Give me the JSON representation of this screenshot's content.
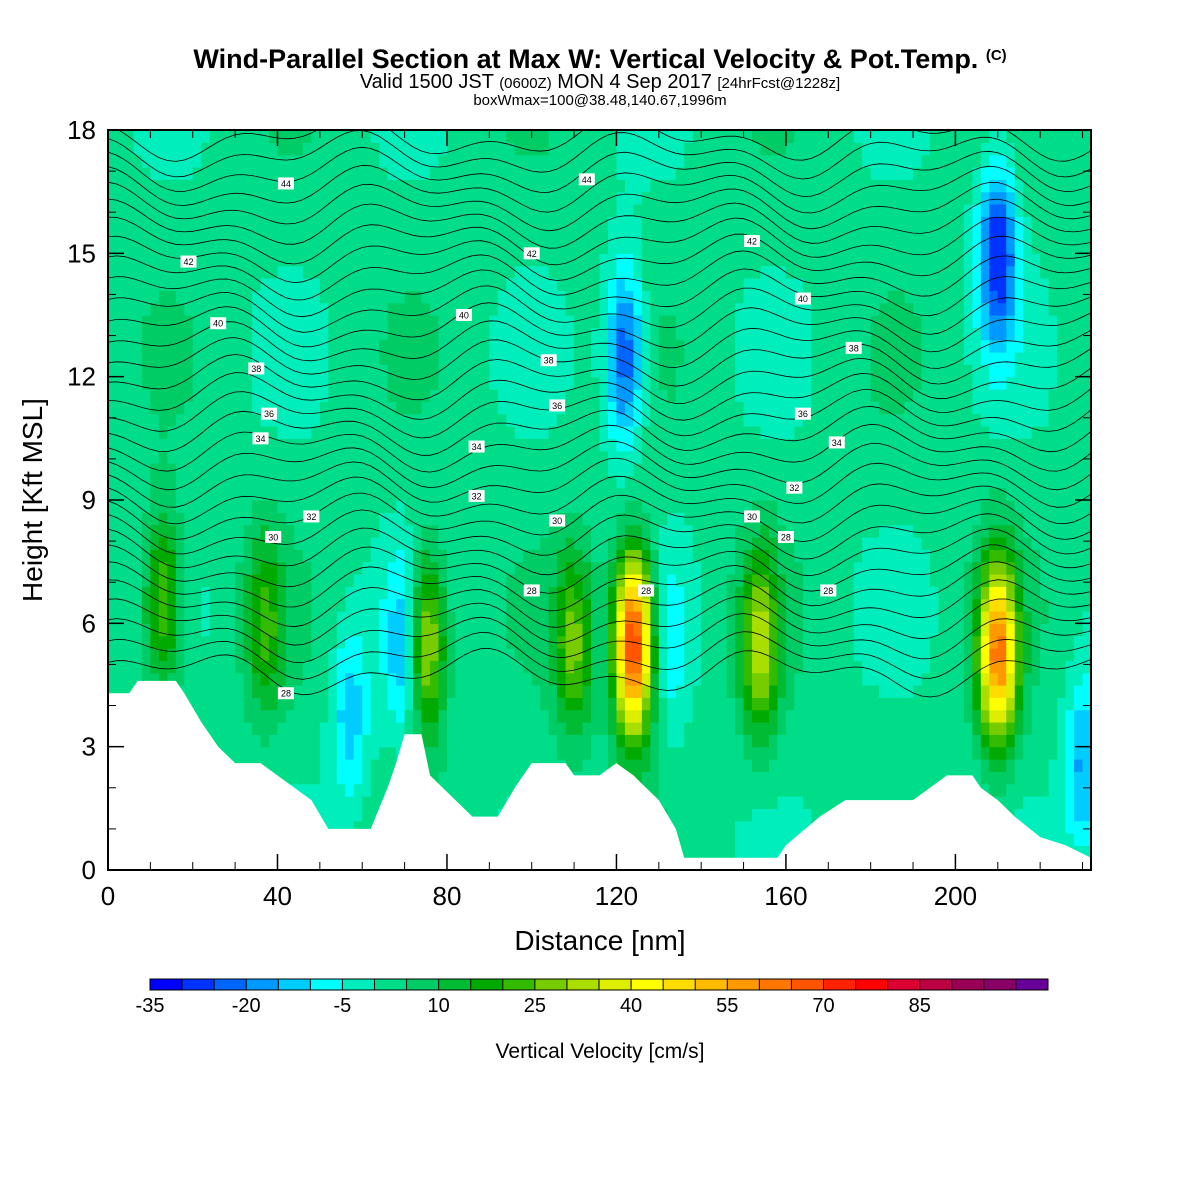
{
  "title": {
    "main": "Wind-Parallel Section at Max W: Vertical Velocity & Pot.Temp.",
    "copyright": "(C)",
    "valid_prefix": "Valid 1500 JST",
    "valid_utc": "(0600Z)",
    "valid_date": "MON 4 Sep 2017",
    "forecast": "[24hrFcst@1228z]",
    "box": "boxWmax=100@38.48,140.67,1996m"
  },
  "chart_data": {
    "type": "heatmap",
    "xlabel": "Distance [nm]",
    "ylabel": "Height [Kft MSL]",
    "xlim": [
      0,
      232
    ],
    "ylim": [
      0,
      18
    ],
    "xticks": [
      0,
      40,
      80,
      120,
      160,
      200
    ],
    "yticks": [
      0,
      3,
      6,
      9,
      12,
      15,
      18
    ],
    "colorbar": {
      "title": "Vertical Velocity [cm/s]",
      "labels": [
        "-35",
        "-20",
        "-5",
        "10",
        "25",
        "40",
        "55",
        "70",
        "85"
      ],
      "min": -35,
      "step": 5,
      "colors": [
        "#0000ff",
        "#0033ff",
        "#0066ff",
        "#0099ff",
        "#00ccff",
        "#00ffff",
        "#00eebb",
        "#00dd88",
        "#00cc66",
        "#00bb33",
        "#00aa00",
        "#33bb00",
        "#77cc00",
        "#aadd00",
        "#ddee00",
        "#ffff00",
        "#ffdd00",
        "#ffbb00",
        "#ff9900",
        "#ff7700",
        "#ff5500",
        "#ff2200",
        "#ff0000",
        "#dd0033",
        "#bb0044",
        "#990055",
        "#880066",
        "#660099"
      ]
    },
    "terrain": [
      [
        0,
        4.3
      ],
      [
        5,
        4.3
      ],
      [
        7,
        4.6
      ],
      [
        16,
        4.6
      ],
      [
        18,
        4.3
      ],
      [
        22,
        3.6
      ],
      [
        26,
        3.0
      ],
      [
        30,
        2.6
      ],
      [
        36,
        2.6
      ],
      [
        44,
        2.0
      ],
      [
        48,
        1.7
      ],
      [
        52,
        1.0
      ],
      [
        62,
        1.0
      ],
      [
        66,
        2.0
      ],
      [
        68,
        2.6
      ],
      [
        70,
        3.3
      ],
      [
        74,
        3.3
      ],
      [
        76,
        2.3
      ],
      [
        82,
        1.7
      ],
      [
        86,
        1.3
      ],
      [
        92,
        1.3
      ],
      [
        96,
        2.0
      ],
      [
        100,
        2.6
      ],
      [
        108,
        2.6
      ],
      [
        110,
        2.3
      ],
      [
        116,
        2.3
      ],
      [
        120,
        2.6
      ],
      [
        124,
        2.3
      ],
      [
        130,
        1.7
      ],
      [
        134,
        1.0
      ],
      [
        136,
        0.3
      ],
      [
        158,
        0.3
      ],
      [
        160,
        0.6
      ],
      [
        168,
        1.3
      ],
      [
        174,
        1.7
      ],
      [
        190,
        1.7
      ],
      [
        194,
        2.0
      ],
      [
        198,
        2.3
      ],
      [
        204,
        2.3
      ],
      [
        206,
        2.0
      ],
      [
        210,
        1.7
      ],
      [
        214,
        1.3
      ],
      [
        220,
        0.8
      ],
      [
        226,
        0.6
      ],
      [
        232,
        0.3
      ]
    ],
    "features": [
      {
        "x": 13,
        "y": 6.5,
        "w": 26
      },
      {
        "x": 37,
        "y": 6.0,
        "w": 18
      },
      {
        "x": 57,
        "y": 3.8,
        "w": -15
      },
      {
        "x": 70,
        "y": 5.5,
        "w": -18
      },
      {
        "x": 75,
        "y": 5.5,
        "w": 35
      },
      {
        "x": 110,
        "y": 5.5,
        "w": 24
      },
      {
        "x": 122,
        "y": 12.5,
        "w": -28
      },
      {
        "x": 124,
        "y": 5.5,
        "w": 72
      },
      {
        "x": 133,
        "y": 5.5,
        "w": -8
      },
      {
        "x": 154,
        "y": 5.5,
        "w": 30
      },
      {
        "x": 210,
        "y": 15.0,
        "w": -32
      },
      {
        "x": 210,
        "y": 5.3,
        "w": 58
      },
      {
        "x": 230,
        "y": 2.5,
        "w": -18
      }
    ],
    "theta_labels": [
      {
        "x": 42,
        "y": 16.7,
        "text": "44"
      },
      {
        "x": 113,
        "y": 16.8,
        "text": "44"
      },
      {
        "x": 19,
        "y": 14.8,
        "text": "42"
      },
      {
        "x": 100,
        "y": 15.0,
        "text": "42"
      },
      {
        "x": 152,
        "y": 15.3,
        "text": "42"
      },
      {
        "x": 26,
        "y": 13.3,
        "text": "40"
      },
      {
        "x": 84,
        "y": 13.5,
        "text": "40"
      },
      {
        "x": 164,
        "y": 13.9,
        "text": "40"
      },
      {
        "x": 35,
        "y": 12.2,
        "text": "38"
      },
      {
        "x": 104,
        "y": 12.4,
        "text": "38"
      },
      {
        "x": 176,
        "y": 12.7,
        "text": "38"
      },
      {
        "x": 38,
        "y": 11.1,
        "text": "36"
      },
      {
        "x": 106,
        "y": 11.3,
        "text": "36"
      },
      {
        "x": 164,
        "y": 11.1,
        "text": "36"
      },
      {
        "x": 36,
        "y": 10.5,
        "text": "34"
      },
      {
        "x": 87,
        "y": 10.3,
        "text": "34"
      },
      {
        "x": 172,
        "y": 10.4,
        "text": "34"
      },
      {
        "x": 48,
        "y": 8.6,
        "text": "32"
      },
      {
        "x": 87,
        "y": 9.1,
        "text": "32"
      },
      {
        "x": 162,
        "y": 9.3,
        "text": "32"
      },
      {
        "x": 39,
        "y": 8.1,
        "text": "30"
      },
      {
        "x": 106,
        "y": 8.5,
        "text": "30"
      },
      {
        "x": 152,
        "y": 8.6,
        "text": "30"
      },
      {
        "x": 42,
        "y": 4.3,
        "text": "28"
      },
      {
        "x": 100,
        "y": 6.8,
        "text": "28"
      },
      {
        "x": 127,
        "y": 6.8,
        "text": "28"
      },
      {
        "x": 160,
        "y": 8.1,
        "text": "28"
      },
      {
        "x": 170,
        "y": 6.8,
        "text": "28"
      }
    ]
  }
}
